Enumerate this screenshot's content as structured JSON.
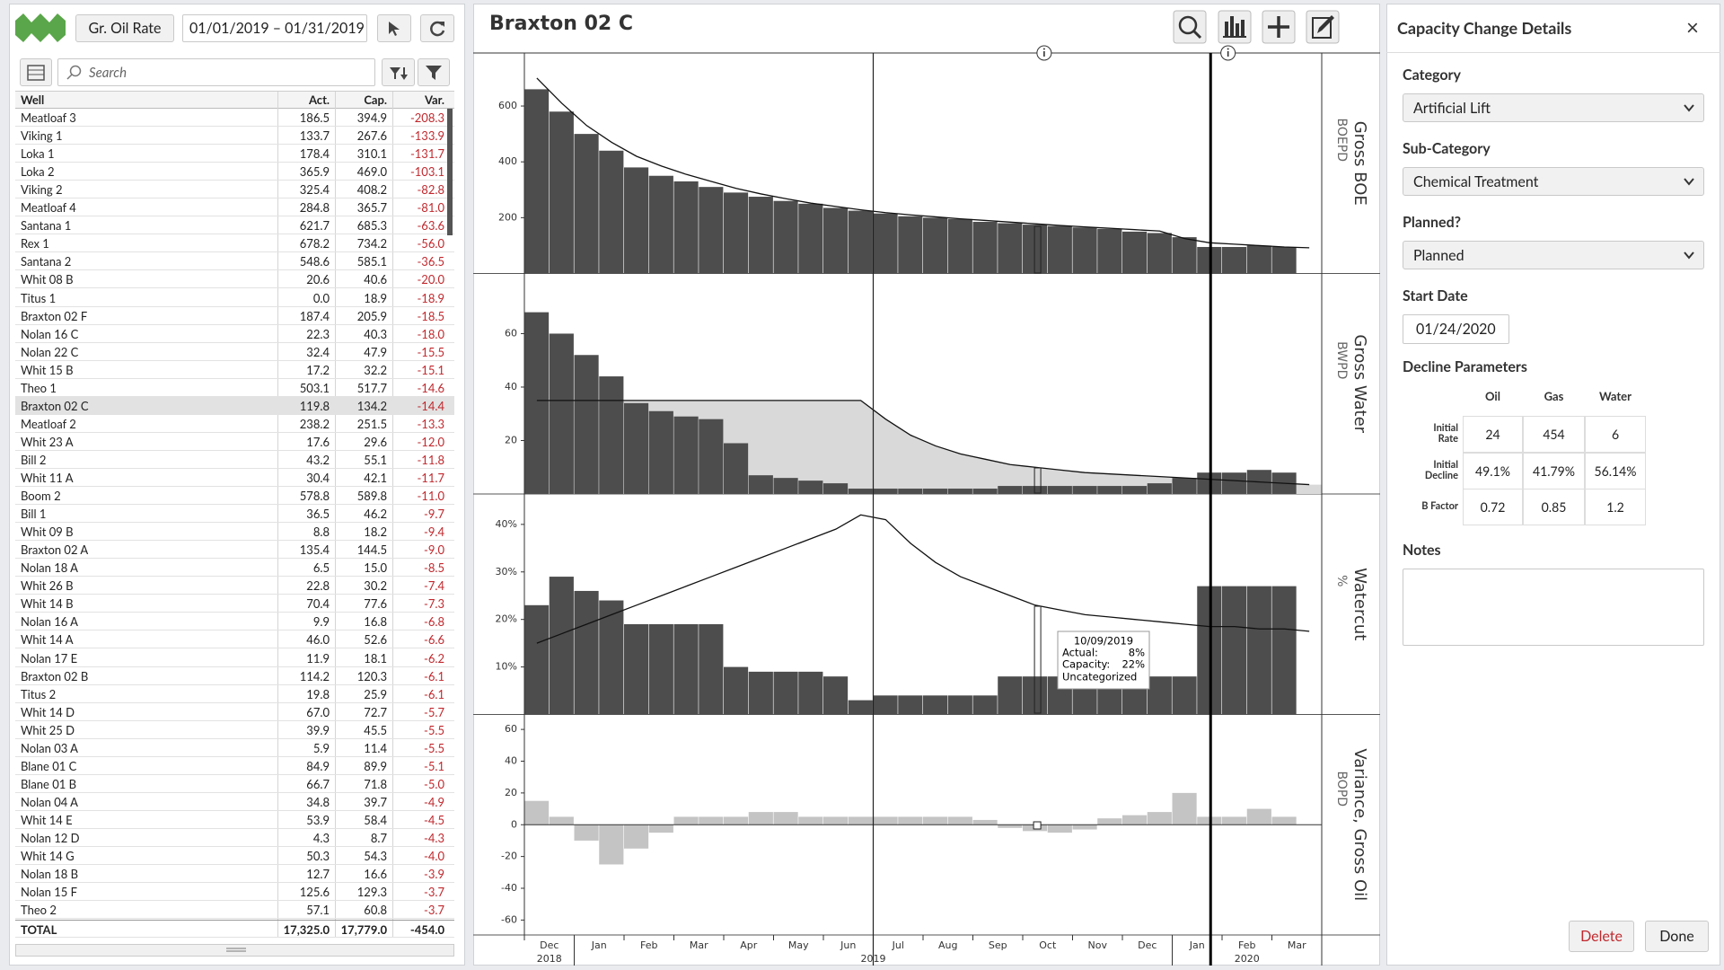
{
  "header": {
    "rate_button": "Gr. Oil Rate",
    "date_range": "01/01/2019 – 01/31/2019"
  },
  "search": {
    "placeholder": "Search"
  },
  "well_table": {
    "columns": [
      "Well",
      "Act.",
      "Cap.",
      "Var."
    ],
    "selected_row": 16,
    "rows": [
      [
        "Meatloaf 3",
        "186.5",
        "394.9",
        "-208.3"
      ],
      [
        "Viking 1",
        "133.7",
        "267.6",
        "-133.9"
      ],
      [
        "Loka 1",
        "178.4",
        "310.1",
        "-131.7"
      ],
      [
        "Loka 2",
        "365.9",
        "469.0",
        "-103.1"
      ],
      [
        "Viking 2",
        "325.4",
        "408.2",
        "-82.8"
      ],
      [
        "Meatloaf 4",
        "284.8",
        "365.7",
        "-81.0"
      ],
      [
        "Santana 1",
        "621.7",
        "685.3",
        "-63.6"
      ],
      [
        "Rex 1",
        "678.2",
        "734.2",
        "-56.0"
      ],
      [
        "Santana 2",
        "548.6",
        "585.1",
        "-36.5"
      ],
      [
        "Whit 08 B",
        "20.6",
        "40.6",
        "-20.0"
      ],
      [
        "Titus 1",
        "0.0",
        "18.9",
        "-18.9"
      ],
      [
        "Braxton 02 F",
        "187.4",
        "205.9",
        "-18.5"
      ],
      [
        "Nolan 16 C",
        "22.3",
        "40.3",
        "-18.0"
      ],
      [
        "Nolan 22 C",
        "32.4",
        "47.9",
        "-15.5"
      ],
      [
        "Whit 15 B",
        "17.2",
        "32.2",
        "-15.1"
      ],
      [
        "Theo 1",
        "503.1",
        "517.7",
        "-14.6"
      ],
      [
        "Braxton 02 C",
        "119.8",
        "134.2",
        "-14.4"
      ],
      [
        "Meatloaf 2",
        "238.2",
        "251.5",
        "-13.3"
      ],
      [
        "Whit 23 A",
        "17.6",
        "29.6",
        "-12.0"
      ],
      [
        "Bill 2",
        "43.2",
        "55.1",
        "-11.8"
      ],
      [
        "Whit 11 A",
        "30.4",
        "42.1",
        "-11.7"
      ],
      [
        "Boom 2",
        "578.8",
        "589.8",
        "-11.0"
      ],
      [
        "Bill 1",
        "36.5",
        "46.2",
        "-9.7"
      ],
      [
        "Whit 09 B",
        "8.8",
        "18.2",
        "-9.4"
      ],
      [
        "Braxton 02 A",
        "135.4",
        "144.5",
        "-9.0"
      ],
      [
        "Nolan 18 A",
        "6.5",
        "15.0",
        "-8.5"
      ],
      [
        "Whit 26 B",
        "22.8",
        "30.2",
        "-7.4"
      ],
      [
        "Whit 14 B",
        "70.4",
        "77.6",
        "-7.3"
      ],
      [
        "Nolan 16 A",
        "9.9",
        "16.8",
        "-6.8"
      ],
      [
        "Whit 14 A",
        "46.0",
        "52.6",
        "-6.6"
      ],
      [
        "Nolan 17 E",
        "11.9",
        "18.1",
        "-6.2"
      ],
      [
        "Braxton 02 B",
        "114.2",
        "120.3",
        "-6.1"
      ],
      [
        "Titus 2",
        "19.8",
        "25.9",
        "-6.1"
      ],
      [
        "Whit 14 D",
        "67.0",
        "72.7",
        "-5.7"
      ],
      [
        "Whit 25 D",
        "39.9",
        "45.5",
        "-5.5"
      ],
      [
        "Nolan 03 A",
        "5.9",
        "11.4",
        "-5.5"
      ],
      [
        "Blane 01 C",
        "84.9",
        "89.9",
        "-5.1"
      ],
      [
        "Blane 01 B",
        "66.7",
        "71.8",
        "-5.0"
      ],
      [
        "Nolan 04 A",
        "34.8",
        "39.7",
        "-4.9"
      ],
      [
        "Whit 14 E",
        "53.9",
        "58.4",
        "-4.5"
      ],
      [
        "Nolan 12 D",
        "4.3",
        "8.7",
        "-4.3"
      ],
      [
        "Whit 14 G",
        "50.3",
        "54.3",
        "-4.0"
      ],
      [
        "Nolan 18 B",
        "12.7",
        "16.6",
        "-3.9"
      ],
      [
        "Nolan 15 F",
        "125.6",
        "129.3",
        "-3.7"
      ],
      [
        "Theo 2",
        "57.1",
        "60.8",
        "-3.7"
      ]
    ],
    "total": [
      "TOTAL",
      "17,325.0",
      "17,779.0",
      "-454.0"
    ]
  },
  "chart": {
    "type": "bar",
    "title": "Braxton 02 C",
    "bar_color": "#4d4d4d",
    "capacity_color": "#111111",
    "x_axis": {
      "groups": [
        {
          "year": "2018",
          "months": [
            "Dec"
          ]
        },
        {
          "year": "2019",
          "months": [
            "Jan",
            "Feb",
            "Mar",
            "Apr",
            "May",
            "Jun",
            "Jul",
            "Aug",
            "Sep",
            "Oct",
            "Nov",
            "Dec"
          ]
        },
        {
          "year": "2020",
          "months": [
            "Jan",
            "Feb",
            "Mar"
          ]
        }
      ]
    },
    "panels": [
      {
        "label": "Gross BOE",
        "unit": "BOEPD",
        "ylim": [
          0,
          790
        ],
        "yticks": [
          200,
          400,
          600
        ],
        "bars": [
          660,
          580,
          500,
          440,
          380,
          350,
          330,
          310,
          290,
          275,
          260,
          250,
          235,
          225,
          215,
          205,
          200,
          195,
          185,
          180,
          175,
          170,
          165,
          160,
          150,
          145,
          130,
          95,
          95,
          100,
          95,
          null
        ],
        "capacity": [
          700,
          610,
          530,
          470,
          420,
          385,
          355,
          330,
          305,
          285,
          268,
          252,
          240,
          228,
          218,
          210,
          203,
          196,
          190,
          184,
          178,
          172,
          167,
          162,
          157,
          152,
          125,
          110,
          105,
          100,
          95,
          92
        ]
      },
      {
        "label": "Gross Water",
        "unit": "BWPD",
        "ylim": [
          0,
          82.5
        ],
        "yticks": [
          20,
          40,
          60
        ],
        "fill_under_capacity": "#d9d9d9",
        "bars": [
          68,
          60,
          52,
          44,
          34,
          31,
          29,
          28,
          19,
          7,
          6,
          5,
          4,
          2,
          2,
          2,
          2,
          2,
          2,
          3,
          3,
          3,
          3,
          3,
          3,
          4,
          6,
          8,
          8,
          9,
          8,
          null
        ],
        "capacity": [
          35,
          35,
          35,
          35,
          35,
          35,
          35,
          35,
          35,
          35,
          35,
          35,
          35,
          35,
          28,
          22,
          18,
          15,
          13,
          11,
          10,
          9,
          8,
          7.5,
          7,
          6.5,
          6,
          5.5,
          5,
          4.5,
          4,
          3.5
        ]
      },
      {
        "label": "Watercut",
        "unit": "%",
        "ylim": [
          0,
          46.4
        ],
        "yticks": [
          {
            "value": 10,
            "label": "10%"
          },
          {
            "value": 20,
            "label": "20%"
          },
          {
            "value": 30,
            "label": "30%"
          },
          {
            "value": 40,
            "label": "40%"
          }
        ],
        "bars": [
          23,
          29,
          26,
          24,
          19,
          19,
          19,
          19,
          10,
          9,
          9,
          9,
          8,
          3,
          4,
          4,
          4,
          4,
          4,
          8,
          8,
          8,
          8,
          8,
          8,
          8,
          8,
          27,
          27,
          27,
          27,
          null
        ],
        "capacity": [
          15,
          17,
          19,
          21,
          23,
          25,
          27,
          29,
          31,
          33,
          35,
          37,
          39,
          42,
          41,
          36,
          32,
          29,
          27,
          25,
          23,
          22,
          21,
          20.5,
          20,
          19.5,
          19,
          18.5,
          18.5,
          18,
          18,
          17.5
        ]
      },
      {
        "label": "Variance, Gross Oil",
        "unit": "BOPD",
        "ylim": [
          -69.4,
          69.4
        ],
        "yticks": [
          -60,
          -40,
          -20,
          0,
          20,
          40,
          60
        ],
        "bar_color": "#c4c4c4",
        "bars": [
          15,
          5,
          -10,
          -25,
          -15,
          -5,
          5,
          5,
          5,
          8,
          8,
          5,
          5,
          5,
          5,
          5,
          5,
          5,
          3,
          -2,
          -4,
          -5,
          -3,
          4,
          6,
          8,
          20,
          5,
          5,
          10,
          5,
          null
        ]
      }
    ],
    "tooltip": {
      "date": "10/09/2019",
      "rows": [
        [
          "Actual:",
          "8%"
        ],
        [
          "Capacity:",
          "22%"
        ]
      ],
      "category": "Uncategorized"
    }
  },
  "details": {
    "title": "Capacity Change Details",
    "close": "×",
    "fields": [
      {
        "label": "Category",
        "value": "Artificial Lift"
      },
      {
        "label": "Sub-Category",
        "value": "Chemical Treatment"
      },
      {
        "label": "Planned?",
        "value": "Planned"
      }
    ],
    "start_date": {
      "label": "Start Date",
      "value": "01/24/2020"
    },
    "decline": {
      "title": "Decline Parameters",
      "columns": [
        "Oil",
        "Gas",
        "Water"
      ],
      "rows": [
        {
          "label": "Initial Rate",
          "values": [
            "24",
            "454",
            "6"
          ]
        },
        {
          "label": "Initial Decline",
          "values": [
            "49.1%",
            "41.79%",
            "56.14%"
          ]
        },
        {
          "label": "B Factor",
          "values": [
            "0.72",
            "0.85",
            "1.2"
          ]
        }
      ]
    },
    "notes": {
      "label": "Notes"
    },
    "buttons": [
      "Delete",
      "Done"
    ]
  }
}
